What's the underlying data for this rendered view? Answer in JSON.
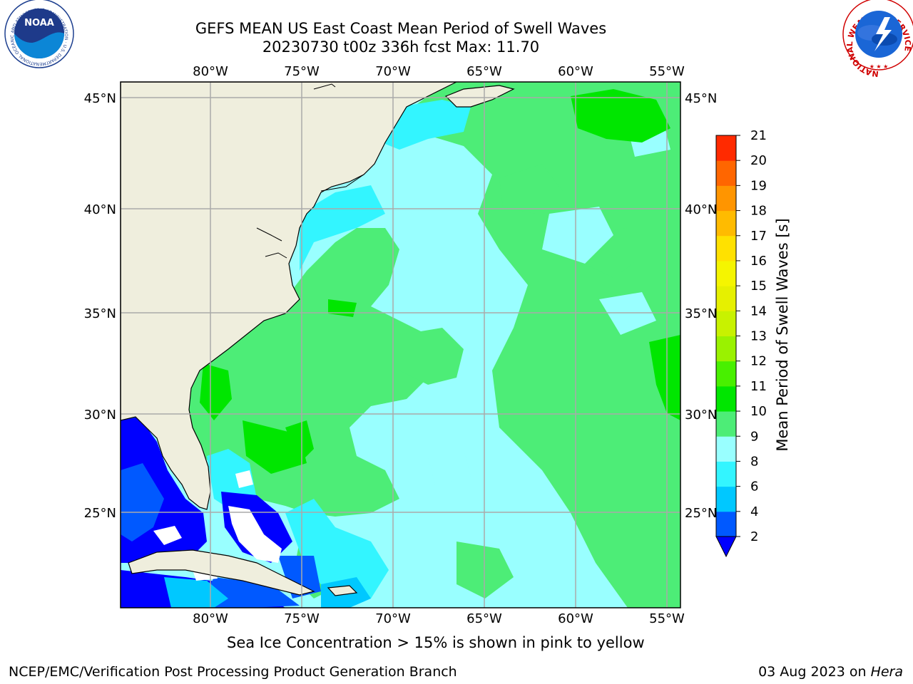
{
  "title": {
    "line1": "GEFS MEAN US East Coast Mean Period of Swell Waves",
    "line2": "20230730 t00z 336h fcst   Max: 11.70"
  },
  "map": {
    "lon_labels": [
      "80°W",
      "75°W",
      "70°W",
      "65°W",
      "60°W",
      "55°W"
    ],
    "lat_labels": [
      "45°N",
      "40°N",
      "35°N",
      "30°N",
      "25°N"
    ],
    "land_color": "#efeedd",
    "gridline_color": "#aaaaaa"
  },
  "colorbar": {
    "label": "Mean Period of Swell Waves [s]",
    "ticks": [
      "2",
      "4",
      "6",
      "8",
      "9",
      "10",
      "11",
      "12",
      "13",
      "14",
      "15",
      "16",
      "17",
      "18",
      "19",
      "20",
      "21"
    ],
    "colors": [
      "#0059ff",
      "#00c8ff",
      "#33f5ff",
      "#99ffff",
      "#4ded77",
      "#00e600",
      "#48f000",
      "#9af200",
      "#c8f200",
      "#e6f000",
      "#f5f500",
      "#ffe100",
      "#ffbb00",
      "#ff9500",
      "#ff6600",
      "#ff2a00",
      "#ff0000"
    ],
    "under_color": "#0000ff"
  },
  "footer": {
    "sea_ice_note": "Sea Ice Concentration > 15% is shown in pink to yellow",
    "credit": "NCEP/EMC/Verification Post Processing Product Generation Branch",
    "date": "03 Aug 2023 on ",
    "host": "Hera"
  },
  "logos": {
    "noaa": "NOAA",
    "noaa_ring": "NATIONAL OCEANIC AND ATMOSPHERIC ADMINISTRATION · U.S. DEPARTMENT OF COMMERCE",
    "nws_ring": "NATIONAL WEATHER SERVICE"
  }
}
